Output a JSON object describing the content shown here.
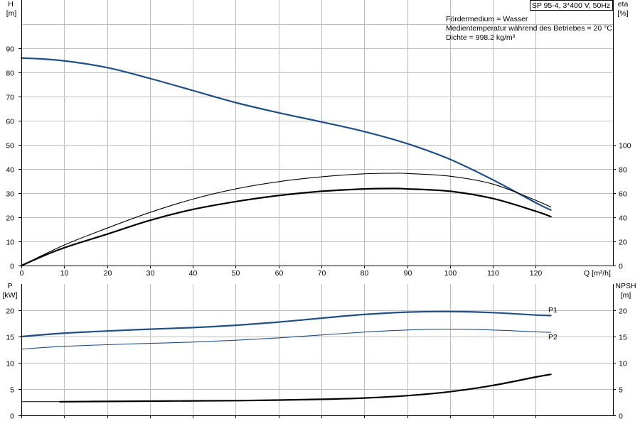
{
  "title_box": "SP 95-4, 3*400 V, 50Hz",
  "medium_info": [
    "Fördermedium = Wasser",
    "Medientemperatur während des Betriebes = 20 °C",
    "Dichte = 998.2 kg/m³"
  ],
  "colors": {
    "blue": "#1f4e89",
    "black": "#000000",
    "grid": "#bdbdbd"
  },
  "chart_data": [
    {
      "type": "line",
      "id": "head_efficiency",
      "xlabel": "Q [m³/h]",
      "xlim": [
        0,
        138
      ],
      "x_ticks": [
        0,
        10,
        20,
        30,
        40,
        50,
        60,
        70,
        80,
        90,
        100,
        110,
        120
      ],
      "left_axis": {
        "label_top": "H",
        "label_unit": "[m]",
        "range": [
          0,
          100
        ],
        "ticks": [
          0,
          10,
          20,
          30,
          40,
          50,
          60,
          70,
          80,
          90
        ]
      },
      "right_axis": {
        "label_top": "eta",
        "label_unit": "[%]",
        "range": [
          0,
          200
        ],
        "ticks": [
          0,
          20,
          40,
          60,
          80,
          100
        ]
      },
      "grid": true,
      "series": [
        {
          "axis": "left",
          "color": "blue",
          "width": 2.2,
          "points": [
            [
              0,
              86
            ],
            [
              9,
              85
            ],
            [
              20,
              82
            ],
            [
              30,
              77.5
            ],
            [
              40,
              72.5
            ],
            [
              50,
              67.5
            ],
            [
              60,
              63.3
            ],
            [
              70,
              59.5
            ],
            [
              80,
              55.5
            ],
            [
              90,
              50.5
            ],
            [
              100,
              44
            ],
            [
              110,
              35.5
            ],
            [
              120,
              26
            ],
            [
              123.5,
              23
            ]
          ]
        },
        {
          "axis": "right",
          "color": "black",
          "width": 1.1,
          "points": [
            [
              0,
              0
            ],
            [
              10,
              17
            ],
            [
              20,
              31
            ],
            [
              30,
              44
            ],
            [
              40,
              55
            ],
            [
              50,
              63.5
            ],
            [
              60,
              69.5
            ],
            [
              70,
              73.5
            ],
            [
              80,
              76
            ],
            [
              87,
              76.5
            ],
            [
              90,
              76.3
            ],
            [
              100,
              74
            ],
            [
              110,
              67.5
            ],
            [
              120,
              54
            ],
            [
              123.5,
              48.5
            ]
          ]
        },
        {
          "axis": "right",
          "color": "black",
          "width": 2.2,
          "points": [
            [
              0,
              0
            ],
            [
              9,
              13.5
            ],
            [
              20,
              26
            ],
            [
              30,
              37.5
            ],
            [
              40,
              46.5
            ],
            [
              50,
              53
            ],
            [
              60,
              58
            ],
            [
              70,
              61.5
            ],
            [
              80,
              63.5
            ],
            [
              87,
              63.8
            ],
            [
              90,
              63.5
            ],
            [
              100,
              61.5
            ],
            [
              110,
              55.5
            ],
            [
              120,
              45
            ],
            [
              123.5,
              40.5
            ]
          ]
        }
      ]
    },
    {
      "type": "line",
      "id": "power_npsh",
      "xlim": [
        0,
        138
      ],
      "x_ticks": [
        0,
        10,
        20,
        30,
        40,
        50,
        60,
        70,
        80,
        90,
        100,
        110,
        120
      ],
      "left_axis": {
        "label_top": "P",
        "label_unit": "[kW]",
        "range": [
          0,
          23
        ],
        "ticks": [
          0,
          5,
          10,
          15,
          20
        ]
      },
      "right_axis": {
        "label_top": "NPSH",
        "label_unit": "[m]",
        "range": [
          0,
          23
        ],
        "ticks": [
          0,
          5,
          10,
          15,
          20
        ]
      },
      "grid": true,
      "series": [
        {
          "name": "P1",
          "axis": "left",
          "color": "blue",
          "width": 2.2,
          "points": [
            [
              0,
              15
            ],
            [
              9,
              15.6
            ],
            [
              20,
              16.05
            ],
            [
              30,
              16.4
            ],
            [
              40,
              16.7
            ],
            [
              50,
              17.15
            ],
            [
              60,
              17.75
            ],
            [
              70,
              18.5
            ],
            [
              80,
              19.2
            ],
            [
              90,
              19.65
            ],
            [
              100,
              19.75
            ],
            [
              110,
              19.55
            ],
            [
              120,
              19.1
            ],
            [
              123.5,
              19
            ]
          ]
        },
        {
          "name": "P2",
          "axis": "left",
          "color": "blue",
          "width": 1.1,
          "points": [
            [
              0,
              12.6
            ],
            [
              9,
              13.1
            ],
            [
              20,
              13.45
            ],
            [
              30,
              13.7
            ],
            [
              40,
              13.95
            ],
            [
              50,
              14.3
            ],
            [
              60,
              14.75
            ],
            [
              70,
              15.3
            ],
            [
              80,
              15.85
            ],
            [
              90,
              16.25
            ],
            [
              100,
              16.4
            ],
            [
              110,
              16.25
            ],
            [
              120,
              15.9
            ],
            [
              123.5,
              15.8
            ]
          ]
        },
        {
          "axis": "right",
          "color": "black",
          "width": 0.9,
          "points": [
            [
              0,
              2.6
            ],
            [
              9,
              2.6
            ]
          ]
        },
        {
          "axis": "right",
          "color": "black",
          "width": 2.2,
          "points": [
            [
              9,
              2.6
            ],
            [
              20,
              2.65
            ],
            [
              30,
              2.7
            ],
            [
              40,
              2.75
            ],
            [
              50,
              2.8
            ],
            [
              60,
              2.9
            ],
            [
              70,
              3.05
            ],
            [
              80,
              3.3
            ],
            [
              90,
              3.75
            ],
            [
              100,
              4.5
            ],
            [
              110,
              5.7
            ],
            [
              120,
              7.3
            ],
            [
              123.5,
              7.8
            ]
          ]
        }
      ]
    }
  ]
}
